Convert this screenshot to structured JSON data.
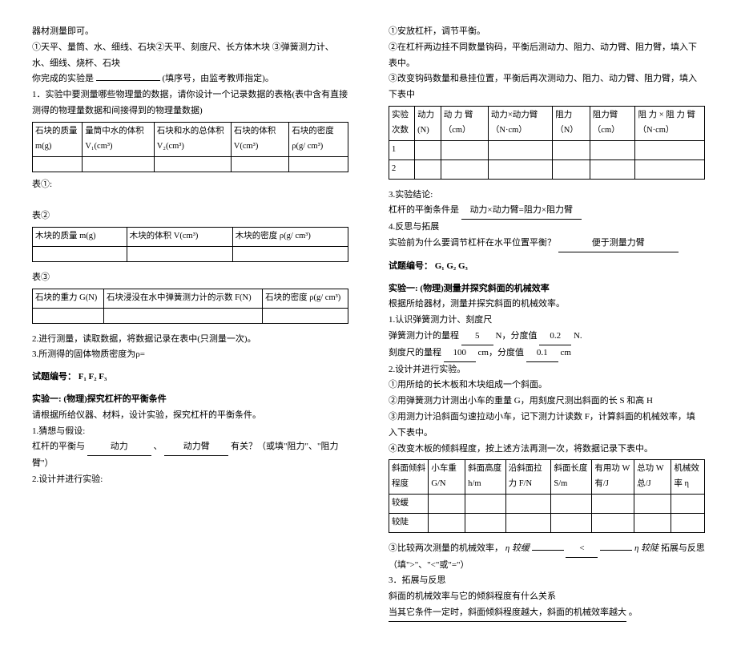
{
  "left": {
    "intro1": "器材测量即可。",
    "intro2": "①天平、量筒、水、细线、石块②天平、刻度尺、长方体木块 ③弹簧测力计、水、细线、烧杯、石块",
    "intro3_pre": "你完成的实验是",
    "intro3_suf": "(填序号，由监考教师指定)。",
    "step1": "1．实验中要测量哪些物理量的数据，请你设计一个记录数据的表格(表中含有直接测得的物理量数据和间接得到的物理量数据)",
    "t1": {
      "h1": "石块的质量\nm(g)",
      "h2": "量筒中水的体积 V₁(cm³)",
      "h3": "石块和水的总体积 V₂(cm³)",
      "h4": "石块的体积\nV(cm³)",
      "h5": "石块的密度\nρ(g/ cm³)"
    },
    "lbl1": "表①:",
    "lbl2": "表②",
    "t2": {
      "h1": "木块的质量\nm(g)",
      "h2": "木块的体积\nV(cm³)",
      "h3": "木块的密度\nρ(g/ cm³)"
    },
    "lbl3": "表③",
    "t3": {
      "h1": "石块的重力\nG(N)",
      "h2": "石块浸没在水中弹簧测力计的示数 F(N)",
      "h3": "石块的密度\nρ(g/ cm³)"
    },
    "step2": "2.进行测量，读取数据，将数据记录在表中(只测量一次)。",
    "step3": "3.所测得的固体物质密度为ρ=",
    "code_lbl": "试题编号：",
    "code_val": "F₁ F₂ F₃",
    "exp1_title": "实验一: (物理)探究杠杆的平衡条件",
    "exp1_line": "请根据所给仪器、材料，设计实验，探究杠杆的平衡条件。",
    "guess_lbl": "1.猜想与假设:",
    "guess_pre": "杠杆的平衡与",
    "guess_v1": "动力",
    "guess_mid1": "、",
    "guess_v2": "动力臂",
    "guess_suf": "有关？（或填\"阻力\"、\"阻力臂\"）",
    "design": "2.设计并进行实验:"
  },
  "right": {
    "s1": "①安放杠杆，调节平衡。",
    "s2": "②在杠杆两边挂不同数量钩码，平衡后测动力、阻力、动力臂、阻力臂，填入下表中。",
    "s3": "③改变钩码数量和悬挂位置，平衡后再次测动力、阻力、动力臂、阻力臂，填入下表中",
    "tA": {
      "h1": "实验次数",
      "h2": "动力\n(N)",
      "h3": "动 力 臂\n（cm）",
      "h4": "动力×动力臂\n（N·cm）",
      "h5": "阻力\n（N）",
      "h6": "阻力臂\n（cm）",
      "h7": "阻 力 × 阻 力 臂\n（N·cm）",
      "r1": "1",
      "r2": "2"
    },
    "concl_lbl": "3.实验结论:",
    "concl_pre": "杠杆的平衡条件是",
    "concl_val": "动力×动力臂=阻力×阻力臂",
    "ref_lbl": "4.反思与拓展",
    "ref_pre": "实验前为什么要调节杠杆在水平位置平衡？",
    "ref_val": "便于测量力臂",
    "code_lbl": "试题编号：",
    "code_val": "G₁ G₂ G₃",
    "exp_title": "实验一: (物理)测量并探究斜面的机械效率",
    "line1": "根据所给器材，测量并探究斜面的机械效率。",
    "line2": "1.认识弹簧测力计、刻度尺",
    "spring_pre": "弹簧测力计的量程",
    "spring_v": "5",
    "spring_mid": "N，分度值",
    "spring_v2": "0.2",
    "spring_suf": "N.",
    "ruler_pre": "刻度尺的量程",
    "ruler_v": "100",
    "ruler_mid": "cm，分度值",
    "ruler_v2": "0.1",
    "ruler_suf": "cm",
    "d_lbl": "2.设计并进行实验。",
    "d1": "①用所给的长木板和木块组成一个斜面。",
    "d2": "②用弹簧测力计测出小车的重量 G，用刻度尺测出斜面的长 S 和高 H",
    "d3": "③用测力计沿斜面匀速拉动小车，记下测力计读数 F，计算斜面的机械效率，填 入下表中。",
    "d4": "④改变木板的倾斜程度，按上述方法再测一次，将数据记录下表中。",
    "tB": {
      "h1": "斜面倾斜程度",
      "h2": "小车重\nG/N",
      "h3": "斜面高度\nh/m",
      "h4": "沿斜面拉力 F/N",
      "h5": "斜面长度\nS/m",
      "h6": "有用功\nW 有/J",
      "h7": "总功\nW 总/J",
      "h8": "机械效率\nη",
      "r1": "较缓",
      "r2": "较陡"
    },
    "cmp_pre": "③比较两次测量的机械效率，",
    "cmp_eta1": "η 较缓",
    "cmp_mid": "<",
    "cmp_eta2": "η 较陡",
    "cmp_suf": "拓展与反思（填\">\"、\"<\"或\"=\"）",
    "ext_lbl": "3．拓展与反思",
    "ext_pre": "斜面的机械效率与它的倾斜程度有什么关系",
    "ext_val": "当其它条件一定时，斜面倾斜程度越大，斜面的机械效率越大",
    "ext_suf": "。"
  }
}
